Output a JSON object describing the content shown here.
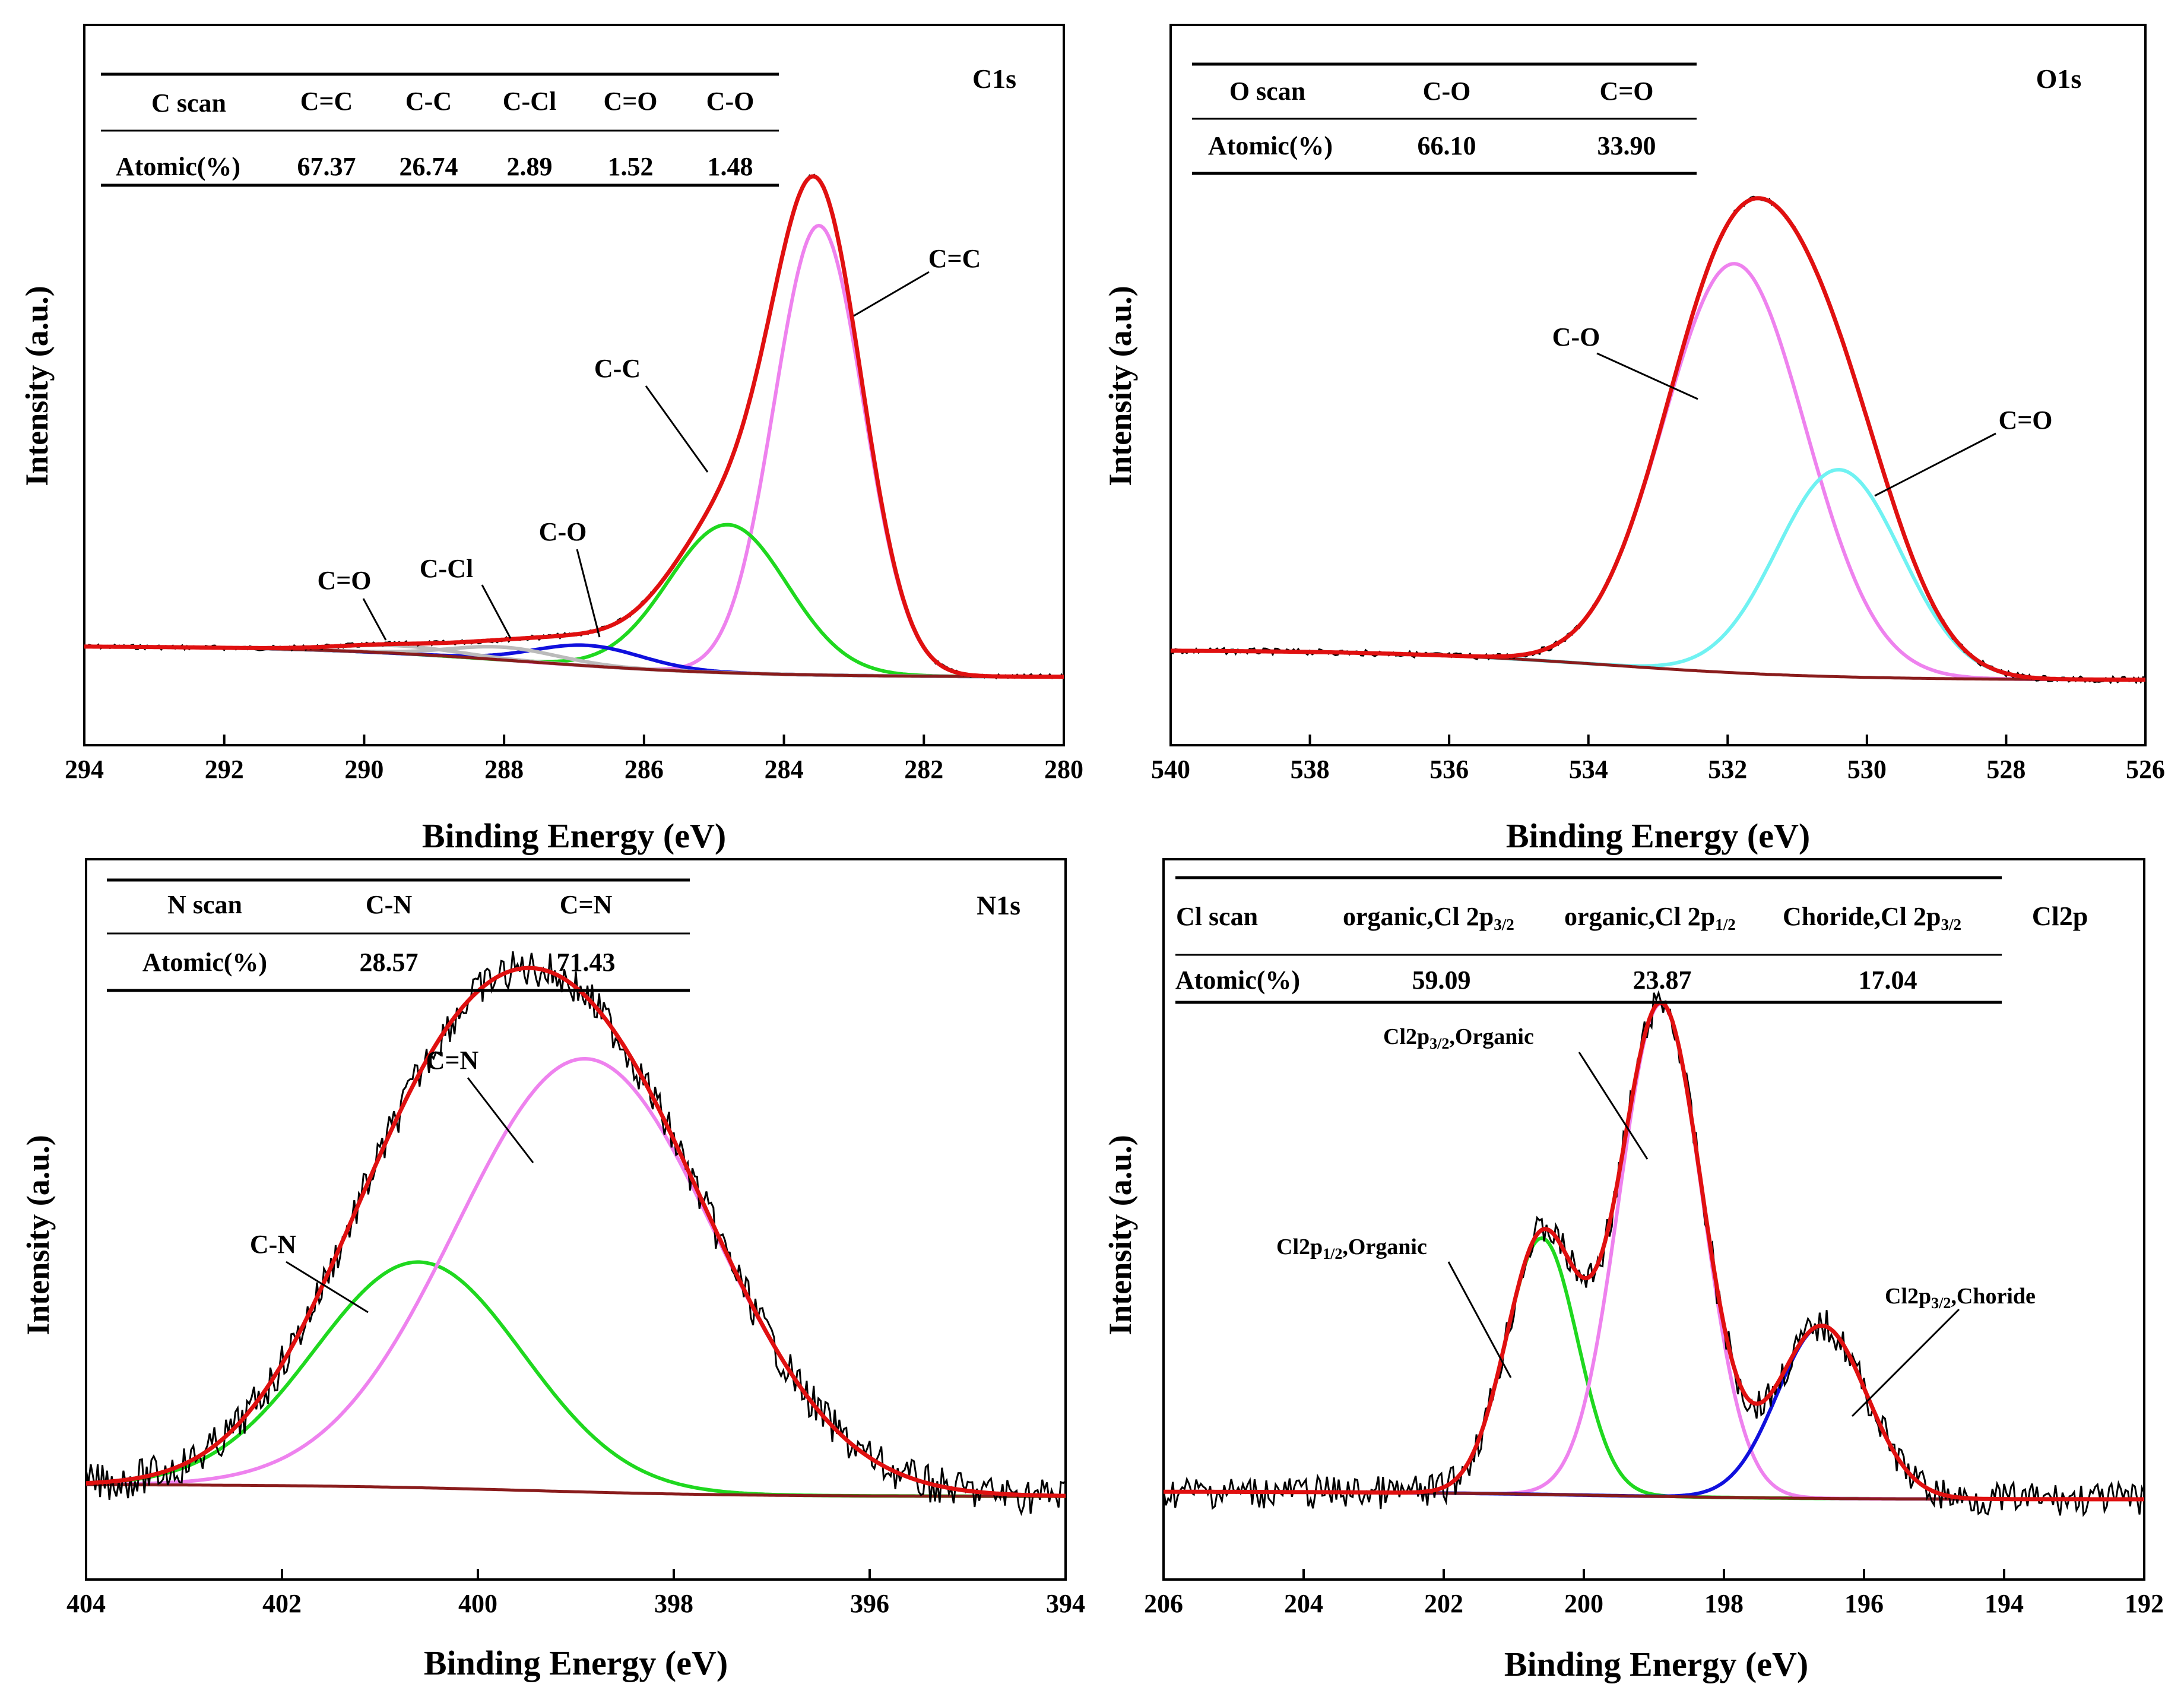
{
  "colors": {
    "raw": "#000000",
    "envelope": "#e01010",
    "background": "#8a1c1c",
    "magenta": "#ee82ee",
    "green": "#1fd81f",
    "blue": "#1010dd",
    "cyan": "#70f2f2",
    "gray": "#bbbbbb"
  },
  "chart_data": [
    {
      "type": "line",
      "title": "C1s",
      "xlabel": "Binding Energy (eV)",
      "ylabel": "Intensity (a.u.)",
      "xlim": [
        294,
        280
      ],
      "x_ticks": [
        "294",
        "292",
        "290",
        "288",
        "286",
        "284",
        "282",
        "280"
      ],
      "table": {
        "headers": [
          "C scan",
          "C=C",
          "C-C",
          "C-Cl",
          "C=O",
          "C-O"
        ],
        "row": [
          "Atomic(%)",
          "67.37",
          "26.74",
          "2.89",
          "1.52",
          "1.48"
        ]
      },
      "series": [
        {
          "name": "C=C",
          "center": 283.5,
          "fwhm": 1.5,
          "height": 0.88
        },
        {
          "name": "C-C",
          "center": 284.8,
          "fwhm": 2.0,
          "height": 0.29
        },
        {
          "name": "C-O",
          "center": 286.8,
          "fwhm": 1.8,
          "height": 0.04
        },
        {
          "name": "C-Cl",
          "center": 288.0,
          "fwhm": 1.8,
          "height": 0.025
        },
        {
          "name": "C=O",
          "center": 289.5,
          "fwhm": 2.0,
          "height": 0.015
        }
      ],
      "annotations": [
        "C=C",
        "C-C",
        "C-O",
        "C-Cl",
        "C=O"
      ]
    },
    {
      "type": "line",
      "title": "O1s",
      "xlabel": "Binding Energy (eV)",
      "ylabel": "Intensity (a.u.)",
      "xlim": [
        540,
        526
      ],
      "x_ticks": [
        "540",
        "538",
        "536",
        "534",
        "532",
        "530",
        "528",
        "526"
      ],
      "table": {
        "headers": [
          "O scan",
          "C-O",
          "C=O"
        ],
        "row": [
          "Atomic(%)",
          "66.10",
          "33.90"
        ]
      },
      "series": [
        {
          "name": "C-O",
          "center": 531.9,
          "fwhm": 2.4,
          "height": 0.83
        },
        {
          "name": "C=O",
          "center": 530.4,
          "fwhm": 2.1,
          "height": 0.42
        }
      ],
      "annotations": [
        "C-O",
        "C=O"
      ]
    },
    {
      "type": "line",
      "title": "N1s",
      "xlabel": "Binding Energy (eV)",
      "ylabel": "Intensity (a.u.)",
      "xlim": [
        404,
        394
      ],
      "x_ticks": [
        "404",
        "402",
        "400",
        "398",
        "396",
        "394"
      ],
      "table": {
        "headers": [
          "N scan",
          "C-N",
          "C=N"
        ],
        "row": [
          "Atomic(%)",
          "28.57",
          "71.43"
        ]
      },
      "series": [
        {
          "name": "C-N",
          "center": 400.6,
          "fwhm": 2.5,
          "height": 0.5
        },
        {
          "name": "C=N",
          "center": 398.9,
          "fwhm": 3.1,
          "height": 0.96
        }
      ],
      "annotations": [
        "C=N",
        "C-N"
      ]
    },
    {
      "type": "line",
      "title": "Cl2p",
      "xlabel": "Binding Energy (eV)",
      "ylabel": "Intensity (a.u.)",
      "xlim": [
        206,
        192
      ],
      "x_ticks": [
        "206",
        "204",
        "202",
        "200",
        "198",
        "196",
        "194",
        "192"
      ],
      "table": {
        "headers": [
          "Cl scan",
          "organic,Cl 2p",
          "3/2",
          "organic,Cl 2p",
          "1/2",
          "Choride,Cl 2p",
          "3/2"
        ],
        "row": [
          "Atomic(%)",
          "59.09",
          "23.87",
          "17.04"
        ]
      },
      "series": [
        {
          "name": "Cl2p1/2,Organic",
          "center": 200.6,
          "fwhm": 1.2,
          "height": 0.52
        },
        {
          "name": "Cl2p3/2,Organic",
          "center": 198.9,
          "fwhm": 1.4,
          "height": 1.0
        },
        {
          "name": "Cl2p3/2,Choride",
          "center": 196.6,
          "fwhm": 1.5,
          "height": 0.35
        }
      ],
      "annotations": [
        "Cl2p",
        "3/2",
        ",Organic",
        "Cl2p",
        "1/2",
        ",Organic",
        "Cl2p",
        "3/2",
        ",Choride"
      ]
    }
  ]
}
